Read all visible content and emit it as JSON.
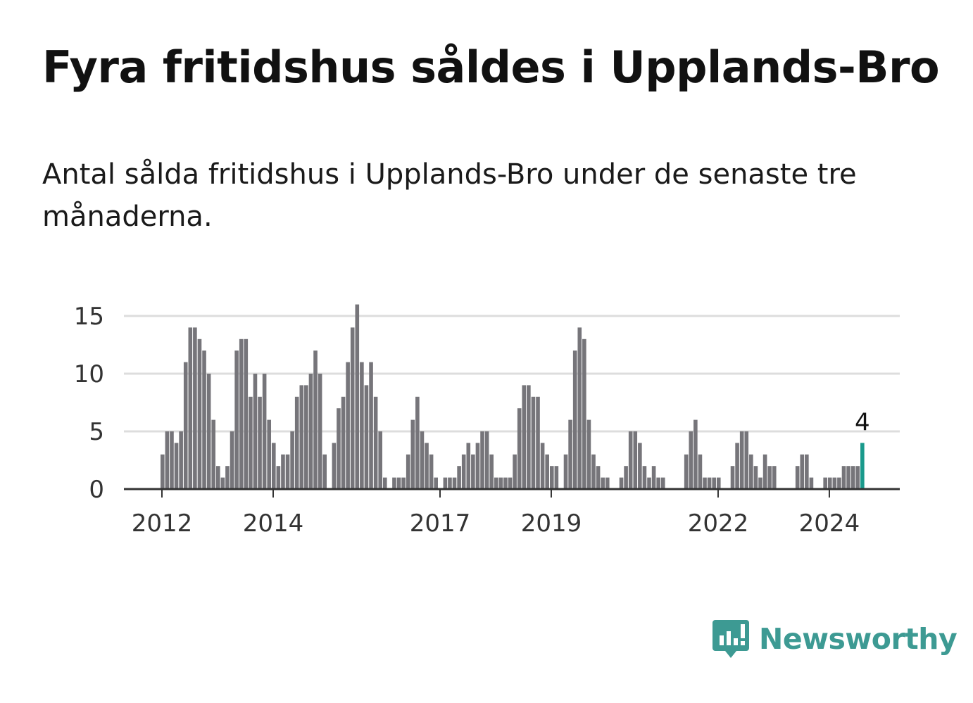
{
  "title": "Fyra fritidshus såldes i Upplands-Bro",
  "subtitle": "Antal sålda fritidshus i Upplands-Bro under de senaste tre månaderna.",
  "brand": {
    "name": "Newsworthy",
    "icon": "newsworthy-chart-bubble-icon",
    "color": "#3d9a93"
  },
  "chart_data": {
    "type": "bar",
    "title": "",
    "xlabel": "",
    "ylabel": "",
    "ylim": [
      0,
      16
    ],
    "yticks": [
      0,
      5,
      10,
      15
    ],
    "xticks": [
      {
        "label": "2012",
        "index": 0
      },
      {
        "label": "2014",
        "index": 24
      },
      {
        "label": "2017",
        "index": 60
      },
      {
        "label": "2019",
        "index": 84
      },
      {
        "label": "2022",
        "index": 120
      },
      {
        "label": "2024",
        "index": 144
      }
    ],
    "grid": true,
    "bar_color": "#76757a",
    "highlight_color": "#1a9a8c",
    "highlight_label": "4",
    "start": "2011-12",
    "frequency": "month",
    "values": [
      3,
      5,
      5,
      4,
      5,
      11,
      14,
      14,
      13,
      12,
      10,
      6,
      2,
      1,
      2,
      5,
      12,
      13,
      13,
      8,
      10,
      8,
      10,
      6,
      4,
      2,
      3,
      3,
      5,
      8,
      9,
      9,
      10,
      12,
      10,
      3,
      0,
      4,
      7,
      8,
      11,
      14,
      16,
      11,
      9,
      11,
      8,
      5,
      1,
      0,
      1,
      1,
      1,
      3,
      6,
      8,
      5,
      4,
      3,
      1,
      0,
      1,
      1,
      1,
      2,
      3,
      4,
      3,
      4,
      5,
      5,
      3,
      1,
      1,
      1,
      1,
      3,
      7,
      9,
      9,
      8,
      8,
      4,
      3,
      2,
      2,
      0,
      3,
      6,
      12,
      14,
      13,
      6,
      3,
      2,
      1,
      1,
      0,
      0,
      1,
      2,
      5,
      5,
      4,
      2,
      1,
      2,
      1,
      1,
      0,
      0,
      0,
      0,
      3,
      5,
      6,
      3,
      1,
      1,
      1,
      1,
      0,
      0,
      2,
      4,
      5,
      5,
      3,
      2,
      1,
      3,
      2,
      2,
      0,
      0,
      0,
      0,
      2,
      3,
      3,
      1,
      0,
      0,
      1,
      1,
      1,
      1,
      2,
      2,
      2,
      2,
      4
    ]
  }
}
